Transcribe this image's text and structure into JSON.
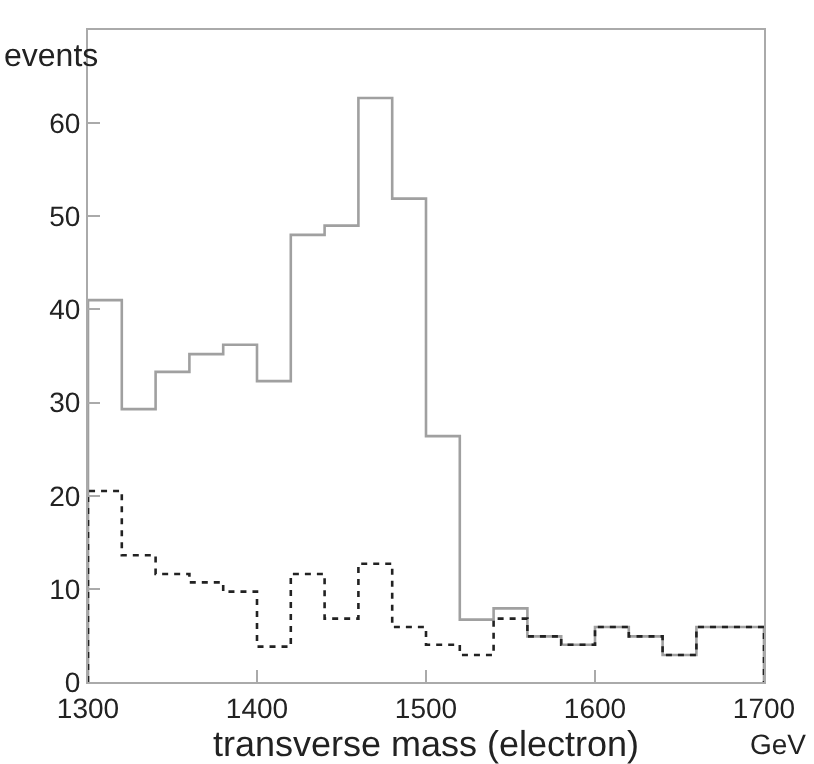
{
  "chart_data": {
    "type": "histogram",
    "xlabel": "transverse mass (electron)",
    "ylabel": "events",
    "annotations": [
      "GeV"
    ],
    "bins": [
      1300,
      1320,
      1340,
      1360,
      1380,
      1400,
      1420,
      1440,
      1460,
      1480,
      1500,
      1520,
      1540,
      1560,
      1580,
      1600,
      1620,
      1640,
      1660,
      1680,
      1700
    ],
    "series": [
      {
        "color": "#a0a0a0",
        "line_style": "solid",
        "values": [
          41,
          29.3,
          33.3,
          35.2,
          36.2,
          32.3,
          48,
          49,
          62.7,
          51.9,
          26.4,
          6.7,
          7.9,
          4.9,
          4,
          5.9,
          4.9,
          2.9,
          5.9,
          5.9
        ]
      },
      {
        "color": "#222222",
        "line_style": "dotted",
        "values": [
          20.5,
          13.6,
          11.6,
          10.7,
          9.7,
          3.8,
          11.6,
          6.8,
          12.7,
          5.9,
          4,
          2.9,
          6.8,
          4.9,
          4,
          5.9,
          4.9,
          2.9,
          5.9,
          5.9
        ]
      }
    ],
    "xlim": [
      1300,
      1700
    ],
    "xticks": [
      1300,
      1400,
      1500,
      1600,
      1700
    ],
    "ylim": [
      0,
      70
    ],
    "yticks": [
      0,
      10,
      20,
      30,
      40,
      50,
      60
    ],
    "grid": false
  }
}
